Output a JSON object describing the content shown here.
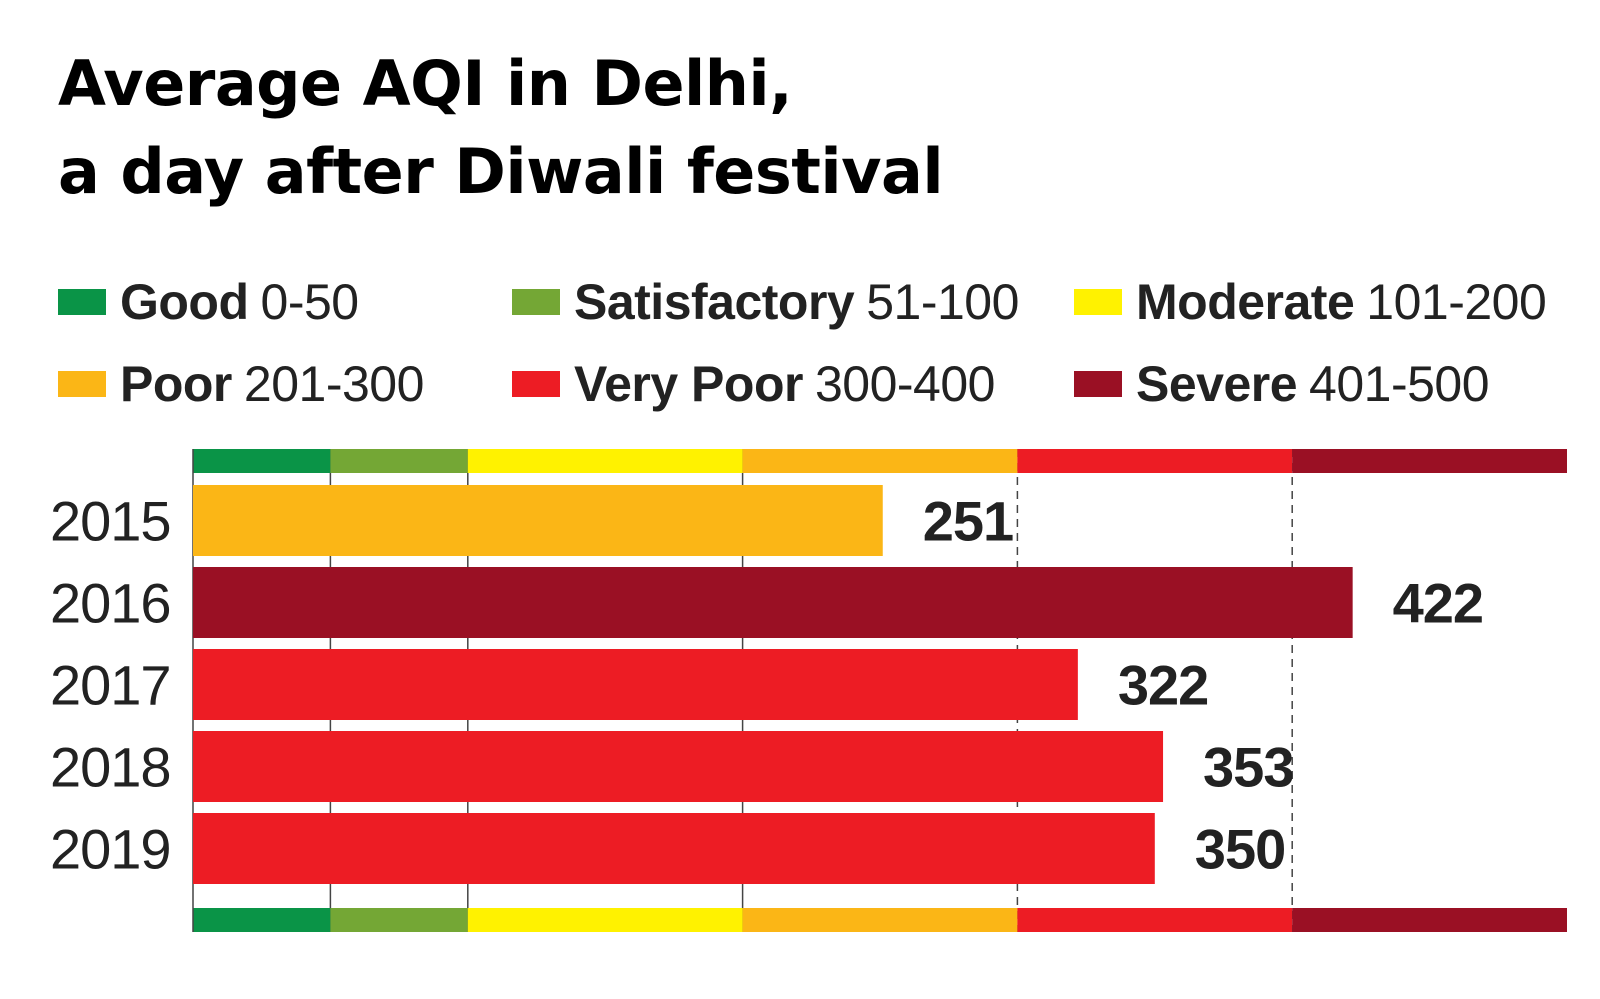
{
  "title_lines": [
    "Average AQI in Delhi,",
    "a day after Diwali festival"
  ],
  "legend": [
    {
      "name": "Good",
      "range": "0-50",
      "color": "#0a9447"
    },
    {
      "name": "Satisfactory",
      "range": "51-100",
      "color": "#74a735"
    },
    {
      "name": "Moderate",
      "range": "101-200",
      "color": "#fff200"
    },
    {
      "name": "Poor",
      "range": "201-300",
      "color": "#fbb616"
    },
    {
      "name": "Very Poor",
      "range": "300-400",
      "color": "#ed1c24"
    },
    {
      "name": "Severe",
      "range": "401-500",
      "color": "#9a1024"
    }
  ],
  "chart_data": {
    "type": "bar",
    "orientation": "horizontal",
    "title": "Average AQI in Delhi, a day after Diwali festival",
    "categories": [
      "2015",
      "2016",
      "2017",
      "2018",
      "2019"
    ],
    "values": [
      251,
      422,
      322,
      353,
      350
    ],
    "value_labels": [
      "251",
      "422",
      "322",
      "353",
      "350"
    ],
    "bar_colors": [
      "#fbb616",
      "#9a1024",
      "#ed1c24",
      "#ed1c24",
      "#ed1c24"
    ],
    "xlim": [
      0,
      500
    ],
    "category_bands": [
      {
        "from": 0,
        "to": 50,
        "color": "#0a9447"
      },
      {
        "from": 50,
        "to": 100,
        "color": "#74a735"
      },
      {
        "from": 100,
        "to": 200,
        "color": "#fff200"
      },
      {
        "from": 200,
        "to": 300,
        "color": "#fbb616"
      },
      {
        "from": 300,
        "to": 400,
        "color": "#ed1c24"
      },
      {
        "from": 400,
        "to": 500,
        "color": "#9a1024"
      }
    ],
    "dashed_gridlines": [
      300,
      400
    ],
    "legend_position": "top"
  }
}
